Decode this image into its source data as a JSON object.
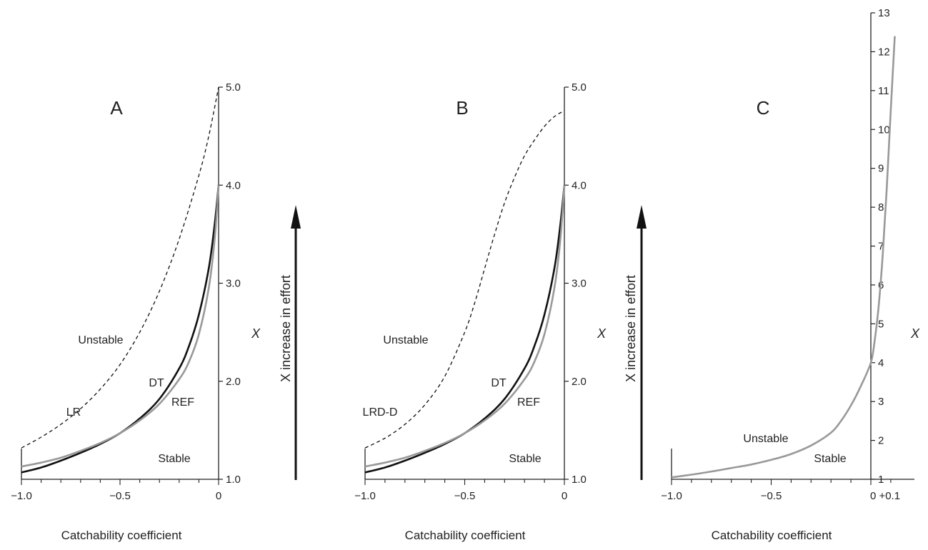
{
  "chart_data": [
    {
      "type": "line",
      "panel": "A",
      "xlabel": "Catchability coefficient",
      "ylabel": "X",
      "xlim": [
        -1.0,
        0
      ],
      "ylim": [
        1.0,
        5.0
      ],
      "xticks": [
        -1.0,
        -0.5,
        0
      ],
      "xtick_labels": [
        "−1.0",
        "−0.5",
        "0"
      ],
      "yticks": [
        1.0,
        2.0,
        3.0,
        4.0,
        5.0
      ],
      "ytick_labels": [
        "1.0",
        "2.0",
        "3.0",
        "4.0",
        "5.0"
      ],
      "series": [
        {
          "name": "LR",
          "style": "dashed",
          "color": "#111111",
          "x": [
            -1.0,
            -0.9,
            -0.8,
            -0.7,
            -0.6,
            -0.5,
            -0.4,
            -0.3,
            -0.2,
            -0.1,
            -0.05,
            0
          ],
          "y": [
            1.32,
            1.43,
            1.56,
            1.72,
            1.92,
            2.17,
            2.5,
            2.92,
            3.45,
            4.1,
            4.5,
            5.0
          ]
        },
        {
          "name": "DT",
          "style": "solid",
          "color": "#111111",
          "x": [
            -1.0,
            -0.9,
            -0.8,
            -0.7,
            -0.6,
            -0.5,
            -0.4,
            -0.3,
            -0.2,
            -0.15,
            -0.1,
            -0.05,
            -0.02,
            0
          ],
          "y": [
            1.07,
            1.12,
            1.19,
            1.27,
            1.36,
            1.47,
            1.62,
            1.82,
            2.13,
            2.36,
            2.68,
            3.15,
            3.6,
            4.0
          ]
        },
        {
          "name": "REF",
          "style": "solid",
          "color": "#999999",
          "x": [
            -1.0,
            -0.9,
            -0.8,
            -0.7,
            -0.6,
            -0.5,
            -0.4,
            -0.3,
            -0.2,
            -0.15,
            -0.1,
            -0.05,
            -0.02,
            0
          ],
          "y": [
            1.13,
            1.17,
            1.22,
            1.29,
            1.37,
            1.47,
            1.6,
            1.77,
            2.02,
            2.2,
            2.48,
            2.95,
            3.45,
            4.0
          ]
        }
      ],
      "annotations": [
        "A",
        "Unstable",
        "Stable",
        "LR",
        "DT",
        "REF",
        "X increase in effort"
      ]
    },
    {
      "type": "line",
      "panel": "B",
      "xlabel": "Catchability coefficient",
      "ylabel": "X",
      "xlim": [
        -1.0,
        0
      ],
      "ylim": [
        1.0,
        5.0
      ],
      "xticks": [
        -1.0,
        -0.5,
        0
      ],
      "xtick_labels": [
        "−1.0",
        "−0.5",
        "0"
      ],
      "yticks": [
        1.0,
        2.0,
        3.0,
        4.0,
        5.0
      ],
      "ytick_labels": [
        "1.0",
        "2.0",
        "3.0",
        "4.0",
        "5.0"
      ],
      "series": [
        {
          "name": "LRD-D",
          "style": "dashed",
          "color": "#111111",
          "x": [
            -1.0,
            -0.9,
            -0.8,
            -0.7,
            -0.6,
            -0.5,
            -0.45,
            -0.4,
            -0.35,
            -0.3,
            -0.25,
            -0.2,
            -0.15,
            -0.1,
            -0.05,
            0
          ],
          "y": [
            1.32,
            1.42,
            1.56,
            1.76,
            2.05,
            2.5,
            2.8,
            3.15,
            3.5,
            3.82,
            4.08,
            4.3,
            4.46,
            4.6,
            4.7,
            4.76
          ]
        },
        {
          "name": "DT",
          "style": "solid",
          "color": "#111111",
          "x": [
            -1.0,
            -0.9,
            -0.8,
            -0.7,
            -0.6,
            -0.5,
            -0.4,
            -0.3,
            -0.2,
            -0.15,
            -0.1,
            -0.05,
            -0.02,
            0
          ],
          "y": [
            1.07,
            1.12,
            1.19,
            1.27,
            1.36,
            1.47,
            1.62,
            1.82,
            2.13,
            2.36,
            2.68,
            3.15,
            3.6,
            4.0
          ]
        },
        {
          "name": "REF",
          "style": "solid",
          "color": "#999999",
          "x": [
            -1.0,
            -0.9,
            -0.8,
            -0.7,
            -0.6,
            -0.5,
            -0.4,
            -0.3,
            -0.2,
            -0.15,
            -0.1,
            -0.05,
            -0.02,
            0
          ],
          "y": [
            1.13,
            1.17,
            1.22,
            1.29,
            1.37,
            1.47,
            1.6,
            1.77,
            2.02,
            2.2,
            2.48,
            2.95,
            3.45,
            4.0
          ]
        }
      ],
      "annotations": [
        "B",
        "Unstable",
        "Stable",
        "LRD-D",
        "DT",
        "REF",
        "X increase in effort"
      ]
    },
    {
      "type": "line",
      "panel": "C",
      "xlabel": "Catchability coefficient",
      "ylabel": "X",
      "xlim": [
        -1.0,
        0.1
      ],
      "ylim": [
        1,
        13
      ],
      "xticks": [
        -1.0,
        -0.5,
        0
      ],
      "xtick_labels": [
        "−1.0",
        "−0.5",
        "0 +0.1"
      ],
      "yticks": [
        1,
        2,
        3,
        4,
        5,
        6,
        7,
        8,
        9,
        10,
        11,
        12,
        13
      ],
      "ytick_labels": [
        "1",
        "2",
        "3",
        "4",
        "5",
        "6",
        "7",
        "8",
        "9",
        "10",
        "11",
        "12",
        "13"
      ],
      "series": [
        {
          "name": "REF",
          "style": "solid",
          "color": "#999999",
          "x": [
            -1.0,
            -0.9,
            -0.8,
            -0.7,
            -0.6,
            -0.5,
            -0.4,
            -0.3,
            -0.2,
            -0.15,
            -0.1,
            -0.05,
            0,
            0.02,
            0.04,
            0.06,
            0.08,
            0.1,
            0.12
          ],
          "y": [
            1.05,
            1.12,
            1.2,
            1.29,
            1.38,
            1.5,
            1.65,
            1.87,
            2.2,
            2.5,
            2.9,
            3.4,
            4.0,
            4.6,
            5.5,
            6.8,
            8.5,
            10.5,
            12.4
          ]
        }
      ],
      "annotations": [
        "C",
        "Unstable",
        "Stable",
        "X increase in effort"
      ]
    }
  ],
  "panels": [
    {
      "letter": "A",
      "xlabel": "Catchability coefficient",
      "ylabel": "X",
      "region_unstable": "Unstable",
      "region_stable": "Stable",
      "curve_labels": [
        "LR",
        "DT",
        "REF"
      ],
      "effort_label": "X increase in effort"
    },
    {
      "letter": "B",
      "xlabel": "Catchability coefficient",
      "ylabel": "X",
      "region_unstable": "Unstable",
      "region_stable": "Stable",
      "curve_labels": [
        "LRD-D",
        "DT",
        "REF"
      ],
      "effort_label": "X increase in effort"
    },
    {
      "letter": "C",
      "xlabel": "Catchability coefficient",
      "ylabel": "X",
      "region_unstable": "Unstable",
      "region_stable": "Stable",
      "curve_labels": [],
      "effort_label": "X increase in effort"
    }
  ],
  "colors": {
    "black_curve": "#111111",
    "gray_curve": "#999999",
    "axis": "#222222"
  }
}
